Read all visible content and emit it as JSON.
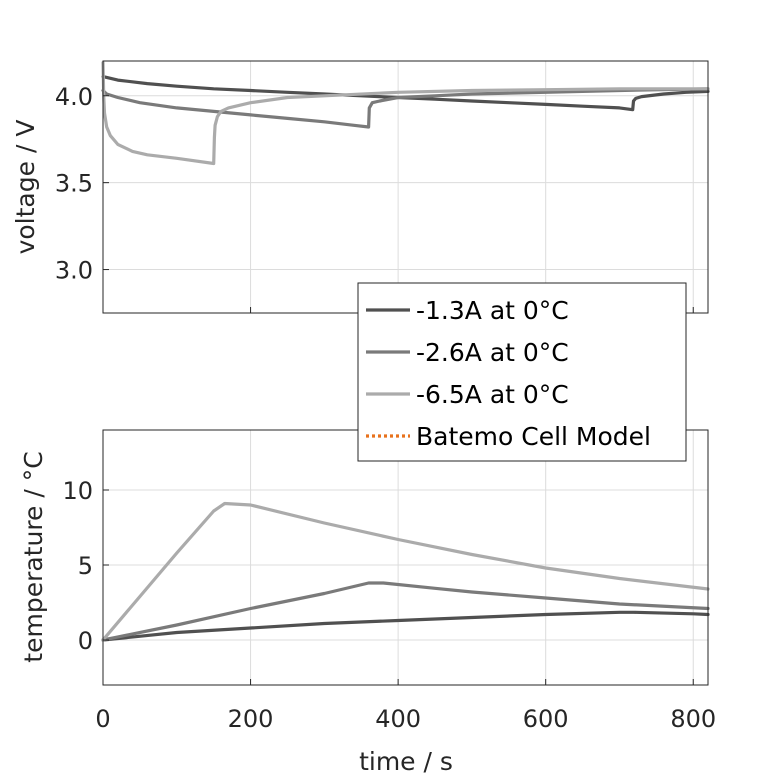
{
  "chart_data": [
    {
      "type": "line",
      "ylabel": "voltage / V",
      "xlim": [
        0,
        820
      ],
      "ylim": [
        2.75,
        4.2
      ],
      "xticks": [
        0,
        200,
        400,
        600,
        800
      ],
      "yticks": [
        3.0,
        3.5,
        4.0
      ],
      "ytick_labels": [
        "3.0",
        "3.5",
        "4.0"
      ],
      "grid": true,
      "series": [
        {
          "name": "-1.3A at 0°C",
          "color": "#505050",
          "x": [
            0,
            20,
            60,
            100,
            150,
            200,
            250,
            300,
            350,
            400,
            450,
            500,
            550,
            600,
            650,
            700,
            718,
            719,
            722,
            730,
            760,
            790,
            820
          ],
          "y": [
            4.11,
            4.09,
            4.07,
            4.055,
            4.04,
            4.03,
            4.02,
            4.01,
            4.0,
            3.99,
            3.98,
            3.97,
            3.96,
            3.95,
            3.94,
            3.93,
            3.92,
            3.97,
            3.985,
            3.995,
            4.01,
            4.02,
            4.025
          ]
        },
        {
          "name": "-2.6A at 0°C",
          "color": "#7a7a7a",
          "x": [
            0,
            5,
            20,
            50,
            100,
            150,
            200,
            250,
            300,
            340,
            360,
            361,
            365,
            375,
            400,
            450,
            500,
            600,
            700,
            820
          ],
          "y": [
            4.03,
            4.01,
            3.99,
            3.96,
            3.93,
            3.91,
            3.89,
            3.87,
            3.85,
            3.83,
            3.82,
            3.93,
            3.96,
            3.97,
            3.99,
            4.0,
            4.01,
            4.02,
            4.03,
            4.04
          ]
        },
        {
          "name": "-6.5A at 0°C",
          "color": "#ababab",
          "x": [
            0,
            1,
            2,
            5,
            10,
            20,
            40,
            60,
            100,
            150,
            151,
            152,
            155,
            160,
            170,
            200,
            250,
            300,
            400,
            500,
            600,
            700,
            820
          ],
          "y": [
            4.19,
            4.0,
            3.9,
            3.82,
            3.77,
            3.72,
            3.68,
            3.66,
            3.64,
            3.61,
            3.76,
            3.83,
            3.88,
            3.91,
            3.93,
            3.96,
            3.99,
            4.0,
            4.02,
            4.03,
            4.035,
            4.04,
            4.04
          ]
        },
        {
          "name": "Batemo Cell Model",
          "color": "#e8721c",
          "dotted": true,
          "x": [],
          "y": []
        }
      ]
    },
    {
      "type": "line",
      "xlabel": "time / s",
      "ylabel": "temperature / °C",
      "xlim": [
        0,
        820
      ],
      "ylim": [
        -3,
        14
      ],
      "xticks": [
        0,
        200,
        400,
        600,
        800
      ],
      "xtick_labels": [
        "0",
        "200",
        "400",
        "600",
        "800"
      ],
      "yticks": [
        0,
        5,
        10
      ],
      "ytick_labels": [
        "0",
        "5",
        "10"
      ],
      "grid": true,
      "series": [
        {
          "name": "-1.3A at 0°C",
          "color": "#505050",
          "x": [
            0,
            100,
            200,
            300,
            400,
            500,
            600,
            700,
            720,
            800,
            820
          ],
          "y": [
            0,
            0.5,
            0.8,
            1.1,
            1.3,
            1.5,
            1.7,
            1.85,
            1.85,
            1.75,
            1.7
          ]
        },
        {
          "name": "-2.6A at 0°C",
          "color": "#7a7a7a",
          "x": [
            0,
            100,
            200,
            300,
            360,
            380,
            450,
            500,
            600,
            700,
            820
          ],
          "y": [
            0,
            1.0,
            2.1,
            3.1,
            3.8,
            3.8,
            3.45,
            3.2,
            2.8,
            2.4,
            2.1
          ]
        },
        {
          "name": "-6.5A at 0°C",
          "color": "#ababab",
          "x": [
            0,
            50,
            100,
            150,
            165,
            200,
            300,
            400,
            500,
            600,
            700,
            820
          ],
          "y": [
            0,
            2.9,
            5.8,
            8.6,
            9.1,
            9.0,
            7.8,
            6.7,
            5.7,
            4.8,
            4.1,
            3.4
          ]
        },
        {
          "name": "Batemo Cell Model",
          "color": "#e8721c",
          "dotted": true,
          "x": [],
          "y": []
        }
      ]
    }
  ],
  "legend": {
    "placement": "center-right",
    "entries": [
      {
        "label": "-1.3A at 0°C",
        "color": "#505050",
        "dotted": false
      },
      {
        "label": "-2.6A at 0°C",
        "color": "#7a7a7a",
        "dotted": false
      },
      {
        "label": "-6.5A at 0°C",
        "color": "#ababab",
        "dotted": false
      },
      {
        "label": "Batemo Cell Model",
        "color": "#e8721c",
        "dotted": true
      }
    ]
  }
}
